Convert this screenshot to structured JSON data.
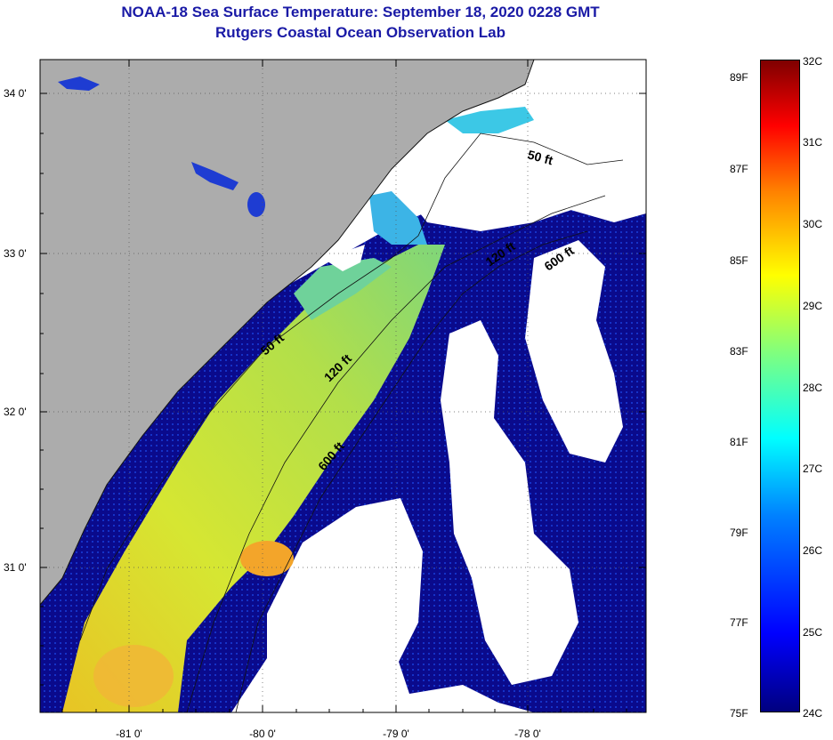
{
  "header": {
    "title": "NOAA-18 Sea Surface Temperature:  September 18, 2020 0228 GMT",
    "subtitle": "Rutgers Coastal Ocean Observation Lab"
  },
  "map": {
    "lat_ticks": [
      "34 0'",
      "33 0'",
      "32 0'",
      "31 0'"
    ],
    "lon_ticks": [
      "-81 0'",
      "-80 0'",
      "-79 0'",
      "-78 0'"
    ],
    "contour_labels": [
      "50 ft",
      "120 ft",
      "600 ft",
      "50 ft",
      "120 ft",
      "600 ft"
    ],
    "colors": {
      "land": "#acacac",
      "cloud": "#ffffff",
      "cold": "#0a0a8c",
      "warm": "#e0ea2a"
    }
  },
  "colorbar": {
    "fahrenheit": [
      "89F",
      "87F",
      "85F",
      "83F",
      "81F",
      "79F",
      "77F",
      "75F"
    ],
    "celsius": [
      "32C",
      "31C",
      "30C",
      "29C",
      "28C",
      "27C",
      "26C",
      "25C",
      "24C"
    ]
  }
}
